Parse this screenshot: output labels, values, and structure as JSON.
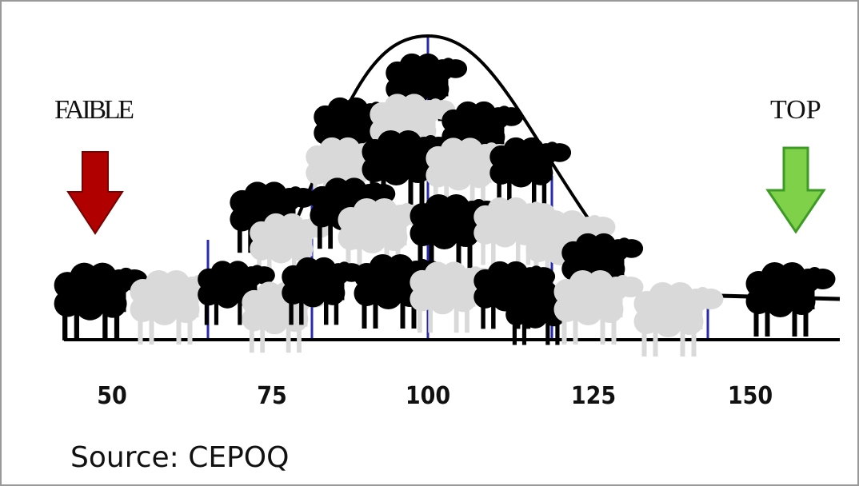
{
  "labels": {
    "left": "FAIBLE",
    "right": "TOP"
  },
  "axis": {
    "ticks": [
      "50",
      "75",
      "100",
      "125",
      "150"
    ]
  },
  "source": "Source: CEPOQ"
}
